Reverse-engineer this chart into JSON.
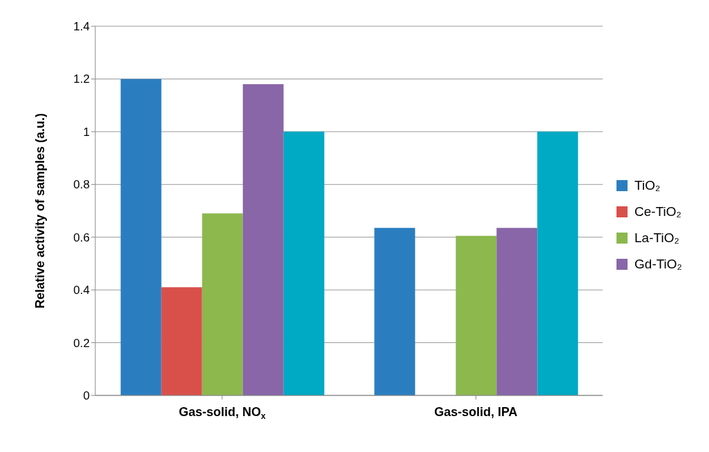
{
  "chart_data": {
    "type": "bar",
    "ylabel": "Relative activity of samples (a.u.)",
    "categories": [
      "Gas-solid, NO$_{x}$",
      "Gas-solid, IPA"
    ],
    "series": [
      {
        "name": "TiO₂",
        "color": "#2a7ec0",
        "values": [
          1.2,
          0.635
        ]
      },
      {
        "name": "Ce-TiO₂",
        "color": "#d9504b",
        "values": [
          0.41,
          null
        ]
      },
      {
        "name": "La-TiO₂",
        "color": "#8cb84e",
        "values": [
          0.69,
          0.605
        ]
      },
      {
        "name": "Gd-TiO₂",
        "color": "#8866a8",
        "values": [
          1.18,
          0.635
        ]
      },
      {
        "color": "#00a9c4",
        "values": [
          1.0,
          1.0
        ]
      }
    ],
    "ylim": [
      0,
      1.4
    ],
    "yticks": [
      0,
      0.2,
      0.4,
      0.6,
      0.8,
      1,
      1.2,
      1.4
    ],
    "grid": "y",
    "legend": "right"
  }
}
